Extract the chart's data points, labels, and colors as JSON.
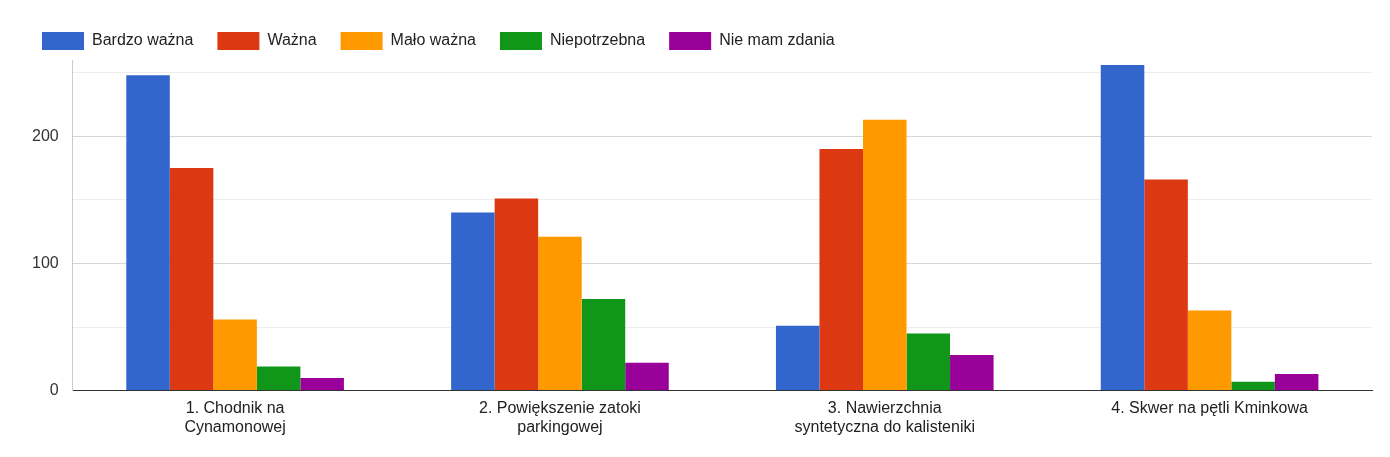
{
  "chart_data": {
    "type": "bar",
    "categories": [
      "1. Chodnik na\nCynamonowej",
      "2. Powiększenie zatoki\nparkingowej",
      "3. Nawierzchnia\nsyntetyczna do kalisteniki",
      "4. Skwer na pętli Kminkowa"
    ],
    "series": [
      {
        "name": "Bardzo ważna",
        "color": "#3366cc",
        "values": [
          248,
          140,
          51,
          256
        ]
      },
      {
        "name": "Ważna",
        "color": "#dc3912",
        "values": [
          175,
          151,
          190,
          166
        ]
      },
      {
        "name": "Mało ważna",
        "color": "#ff9900",
        "values": [
          56,
          121,
          213,
          63
        ]
      },
      {
        "name": "Niepotrzebna",
        "color": "#109618",
        "values": [
          19,
          72,
          45,
          7
        ]
      },
      {
        "name": "Nie mam zdania",
        "color": "#990099",
        "values": [
          10,
          22,
          28,
          13
        ]
      }
    ],
    "ylim": [
      0,
      260
    ],
    "yticks": [
      0,
      {
        "value": 50,
        "label": null
      },
      100,
      {
        "value": 150,
        "label": null
      },
      200,
      {
        "value": 250,
        "label": null
      }
    ],
    "grid": "y",
    "legend": "top left"
  }
}
